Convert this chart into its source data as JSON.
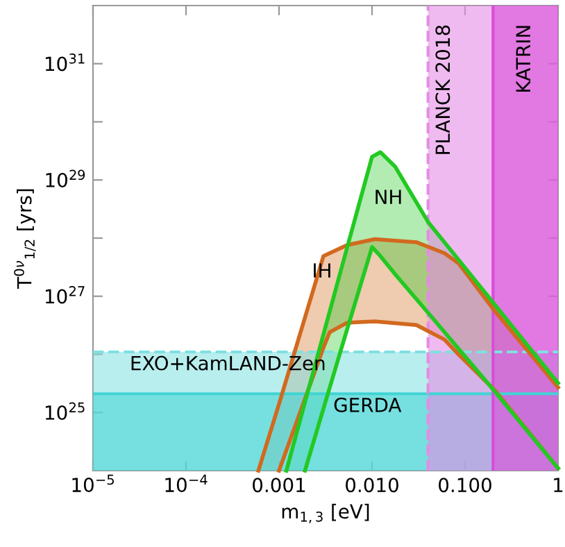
{
  "chart_data": {
    "type": "line",
    "xlabel": "m$_{1,3}$ [eV]",
    "ylabel": "T$^{0ν}$$_{1/2}$ [yrs]",
    "log": "xy",
    "xlim": [
      1e-05,
      1
    ],
    "xticks": [
      {
        "value": 1e-05,
        "label": "10$^{−5}$"
      },
      {
        "value": 0.0001,
        "label": "10$^{−4}$"
      },
      0.001,
      {
        "value": 0.01,
        "label": "0.010"
      },
      {
        "value": 0.1,
        "label": "0.100"
      },
      1
    ],
    "ylim": [
      1e+24,
      1e+32
    ],
    "yticks": [
      {
        "value": 1e+25,
        "label": "10$^{25}$"
      },
      {
        "value": 1e+26,
        "label": null
      },
      {
        "value": 1e+27,
        "label": "10$^{27}$"
      },
      {
        "value": 1e+28,
        "label": null
      },
      {
        "value": 1e+29,
        "label": "10$^{29}$"
      },
      {
        "value": 1e+30,
        "label": null
      },
      {
        "value": 1e+31,
        "label": "10$^{31}$"
      }
    ],
    "series": [
      {
        "color": "#d2691e",
        "x": [
          0.0006,
          0.001,
          0.003,
          0.0035,
          0.0054,
          0.0107,
          0.03,
          0.06,
          0.085,
          0.21,
          1
        ],
        "values": [
          1e+24,
          1.4e+25,
          4.9e+27,
          5.5e+27,
          7.6e+27,
          9.6e+27,
          8.5e+27,
          5.5e+27,
          3.7e+27,
          5.5e+26,
          2.7e+25
        ],
        "lower": [
          1e+24,
          1e+24,
          1.3e+26,
          2.4e+26,
          3.5e+26,
          3.7e+26,
          3.2e+26,
          1.8e+26,
          1e+26,
          2.4e+25,
          1.1e+24
        ],
        "upper": [
          1e+24,
          1.4e+25,
          4.9e+27,
          5.5e+27,
          7.6e+27,
          9.6e+27,
          8.5e+27,
          5.5e+27,
          3.7e+27,
          5.5e+26,
          2.7e+25
        ]
      },
      {
        "color": "#d2691e",
        "x": [
          0.001,
          0.003,
          0.0035,
          0.0054,
          0.0107,
          0.03,
          0.06,
          0.085,
          0.21,
          1
        ],
        "values": [
          1e+24,
          1.3e+26,
          2.4e+26,
          3.5e+26,
          3.7e+26,
          3.2e+26,
          1.8e+26,
          1e+26,
          2.4e+25,
          1.1e+24
        ]
      },
      {
        "color": "#22c922",
        "x": [
          0.0012,
          0.0019,
          0.005,
          0.01,
          0.0123,
          0.0177,
          0.04,
          0.2,
          1
        ],
        "values": [
          1e+24,
          1.5e+25,
          4.4e+27,
          2.5e+29,
          3e+29,
          1.7e+29,
          1.9e+28,
          7.8e+26,
          3.2e+25
        ],
        "lower": [
          1e+24,
          1e+24,
          1.8e+26,
          7e+27,
          4.9e+27,
          2.4e+27,
          5.2e+26,
          2.5e+25,
          1.1e+24
        ],
        "upper": [
          1e+24,
          1.5e+25,
          4.4e+27,
          2.5e+29,
          3e+29,
          1.7e+29,
          1.9e+28,
          7.8e+26,
          3.2e+25
        ]
      },
      {
        "color": "#22c922",
        "x": [
          0.0019,
          0.005,
          0.01,
          0.0123,
          0.0177,
          0.04,
          0.2,
          1
        ],
        "values": [
          1e+24,
          1.8e+26,
          7e+27,
          4.9e+27,
          2.4e+27,
          5.2e+26,
          2.5e+25,
          1.1e+24
        ]
      }
    ],
    "bands": [
      {
        "axis": "y",
        "from": 1e+24,
        "to": 1.1e+26,
        "label": "EXO+KamLAND-Zen",
        "color": "#80e0e0"
      },
      {
        "axis": "y",
        "from": 1e+24,
        "to": 2.1e+25,
        "label": "GERDA",
        "color": "#40d4d4"
      },
      {
        "axis": "x",
        "from": 0.04,
        "to": 1,
        "label": "PLANCK 2018",
        "color": "#e48ce4"
      },
      {
        "axis": "x",
        "from": 0.2,
        "to": 1,
        "label": "KATRIN",
        "color": "#d84cd8"
      }
    ],
    "ref_lines": [
      {
        "axis": "y",
        "value": 1.1e+26,
        "color": "#80e0e0",
        "line_style": "dashed"
      },
      {
        "axis": "y",
        "value": 2.1e+25,
        "color": "#40d4d4",
        "line_style": "solid"
      },
      {
        "axis": "x",
        "value": 0.04,
        "color": "#e48ce4",
        "line_style": "dashed"
      },
      {
        "axis": "x",
        "value": 0.2,
        "color": "#d84cd8",
        "line_style": "solid"
      }
    ],
    "annotations": [
      {
        "text": "IH",
        "x": 0.0029,
        "y": 2.6e+27
      },
      "NH"
    ],
    "grid": false,
    "legend": false
  }
}
